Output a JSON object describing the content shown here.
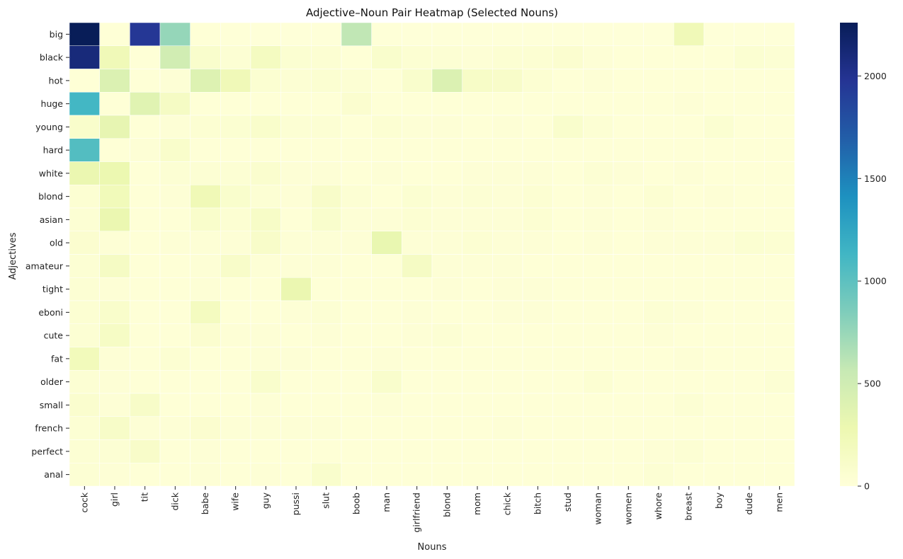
{
  "chart_data": {
    "type": "heatmap",
    "title": "Adjective–Noun Pair Heatmap (Selected Nouns)",
    "xlabel": "Nouns",
    "ylabel": "Adjectives",
    "x_categories": [
      "cock",
      "girl",
      "tit",
      "dick",
      "babe",
      "wife",
      "guy",
      "pussi",
      "slut",
      "boob",
      "man",
      "girlfriend",
      "blond",
      "mom",
      "chick",
      "bitch",
      "stud",
      "woman",
      "women",
      "whore",
      "breast",
      "boy",
      "dude",
      "men"
    ],
    "y_categories": [
      "big",
      "black",
      "hot",
      "huge",
      "young",
      "hard",
      "white",
      "blond",
      "asian",
      "old",
      "amateur",
      "tight",
      "eboni",
      "cute",
      "fat",
      "older",
      "small",
      "french",
      "perfect",
      "anal"
    ],
    "values": [
      [
        2260,
        20,
        1960,
        760,
        20,
        15,
        10,
        10,
        10,
        590,
        15,
        10,
        10,
        10,
        10,
        10,
        10,
        10,
        10,
        10,
        230,
        10,
        10,
        10
      ],
      [
        2100,
        230,
        20,
        490,
        90,
        40,
        170,
        60,
        50,
        20,
        90,
        50,
        40,
        30,
        50,
        50,
        70,
        30,
        20,
        20,
        20,
        20,
        60,
        40
      ],
      [
        20,
        420,
        20,
        30,
        400,
        230,
        60,
        40,
        60,
        40,
        20,
        90,
        420,
        130,
        110,
        50,
        20,
        30,
        20,
        20,
        20,
        20,
        20,
        20
      ],
      [
        1120,
        20,
        380,
        150,
        20,
        20,
        20,
        20,
        20,
        70,
        20,
        20,
        20,
        20,
        20,
        20,
        20,
        20,
        20,
        20,
        30,
        20,
        20,
        20
      ],
      [
        100,
        330,
        20,
        30,
        50,
        60,
        100,
        40,
        40,
        20,
        50,
        30,
        30,
        20,
        30,
        20,
        90,
        40,
        20,
        20,
        20,
        60,
        20,
        20
      ],
      [
        1050,
        20,
        30,
        100,
        20,
        20,
        20,
        20,
        20,
        20,
        20,
        20,
        20,
        20,
        20,
        20,
        20,
        20,
        20,
        20,
        20,
        20,
        20,
        20
      ],
      [
        300,
        290,
        20,
        40,
        40,
        40,
        80,
        30,
        30,
        20,
        30,
        20,
        20,
        30,
        30,
        30,
        20,
        40,
        30,
        20,
        30,
        20,
        20,
        20
      ],
      [
        50,
        220,
        20,
        30,
        240,
        90,
        40,
        30,
        110,
        40,
        20,
        60,
        30,
        40,
        30,
        50,
        20,
        30,
        20,
        50,
        20,
        30,
        20,
        20
      ],
      [
        40,
        300,
        20,
        20,
        100,
        50,
        130,
        20,
        90,
        30,
        30,
        50,
        30,
        30,
        30,
        50,
        20,
        30,
        20,
        30,
        20,
        20,
        20,
        20
      ],
      [
        70,
        30,
        20,
        30,
        30,
        30,
        110,
        30,
        30,
        30,
        310,
        30,
        30,
        50,
        30,
        30,
        20,
        30,
        20,
        30,
        30,
        30,
        60,
        50
      ],
      [
        40,
        150,
        20,
        20,
        30,
        110,
        30,
        30,
        30,
        20,
        20,
        150,
        30,
        30,
        30,
        20,
        20,
        20,
        20,
        20,
        20,
        20,
        20,
        20
      ],
      [
        40,
        30,
        20,
        20,
        30,
        20,
        20,
        300,
        20,
        20,
        20,
        20,
        30,
        20,
        30,
        30,
        20,
        20,
        20,
        20,
        20,
        20,
        20,
        20
      ],
      [
        50,
        100,
        20,
        20,
        180,
        20,
        20,
        30,
        40,
        20,
        20,
        30,
        20,
        20,
        30,
        30,
        20,
        20,
        20,
        40,
        30,
        20,
        20,
        20
      ],
      [
        40,
        140,
        20,
        20,
        70,
        30,
        30,
        20,
        30,
        20,
        20,
        30,
        40,
        20,
        20,
        20,
        20,
        20,
        20,
        30,
        20,
        20,
        20,
        20
      ],
      [
        210,
        30,
        20,
        50,
        20,
        20,
        30,
        30,
        20,
        20,
        30,
        20,
        20,
        20,
        20,
        20,
        20,
        20,
        20,
        20,
        30,
        20,
        20,
        20
      ],
      [
        40,
        30,
        20,
        20,
        20,
        20,
        90,
        20,
        20,
        20,
        90,
        20,
        20,
        20,
        20,
        20,
        20,
        50,
        20,
        20,
        20,
        20,
        20,
        40
      ],
      [
        80,
        30,
        120,
        20,
        20,
        20,
        30,
        20,
        20,
        20,
        30,
        20,
        20,
        20,
        20,
        20,
        20,
        20,
        20,
        20,
        40,
        20,
        20,
        20
      ],
      [
        40,
        120,
        30,
        30,
        70,
        30,
        30,
        30,
        30,
        20,
        20,
        20,
        20,
        20,
        30,
        20,
        20,
        20,
        20,
        20,
        20,
        20,
        20,
        20
      ],
      [
        40,
        40,
        110,
        20,
        30,
        20,
        20,
        20,
        20,
        20,
        20,
        20,
        20,
        20,
        20,
        20,
        20,
        20,
        20,
        30,
        40,
        20,
        20,
        20
      ],
      [
        40,
        30,
        20,
        20,
        30,
        20,
        30,
        20,
        90,
        20,
        20,
        20,
        20,
        20,
        20,
        20,
        20,
        20,
        20,
        40,
        20,
        20,
        20,
        20
      ]
    ],
    "vmin": 0,
    "vmax": 2260,
    "colormap": "YlGnBu",
    "colorbar_ticks": [
      0,
      500,
      1000,
      1500,
      2000
    ],
    "grid": false
  }
}
